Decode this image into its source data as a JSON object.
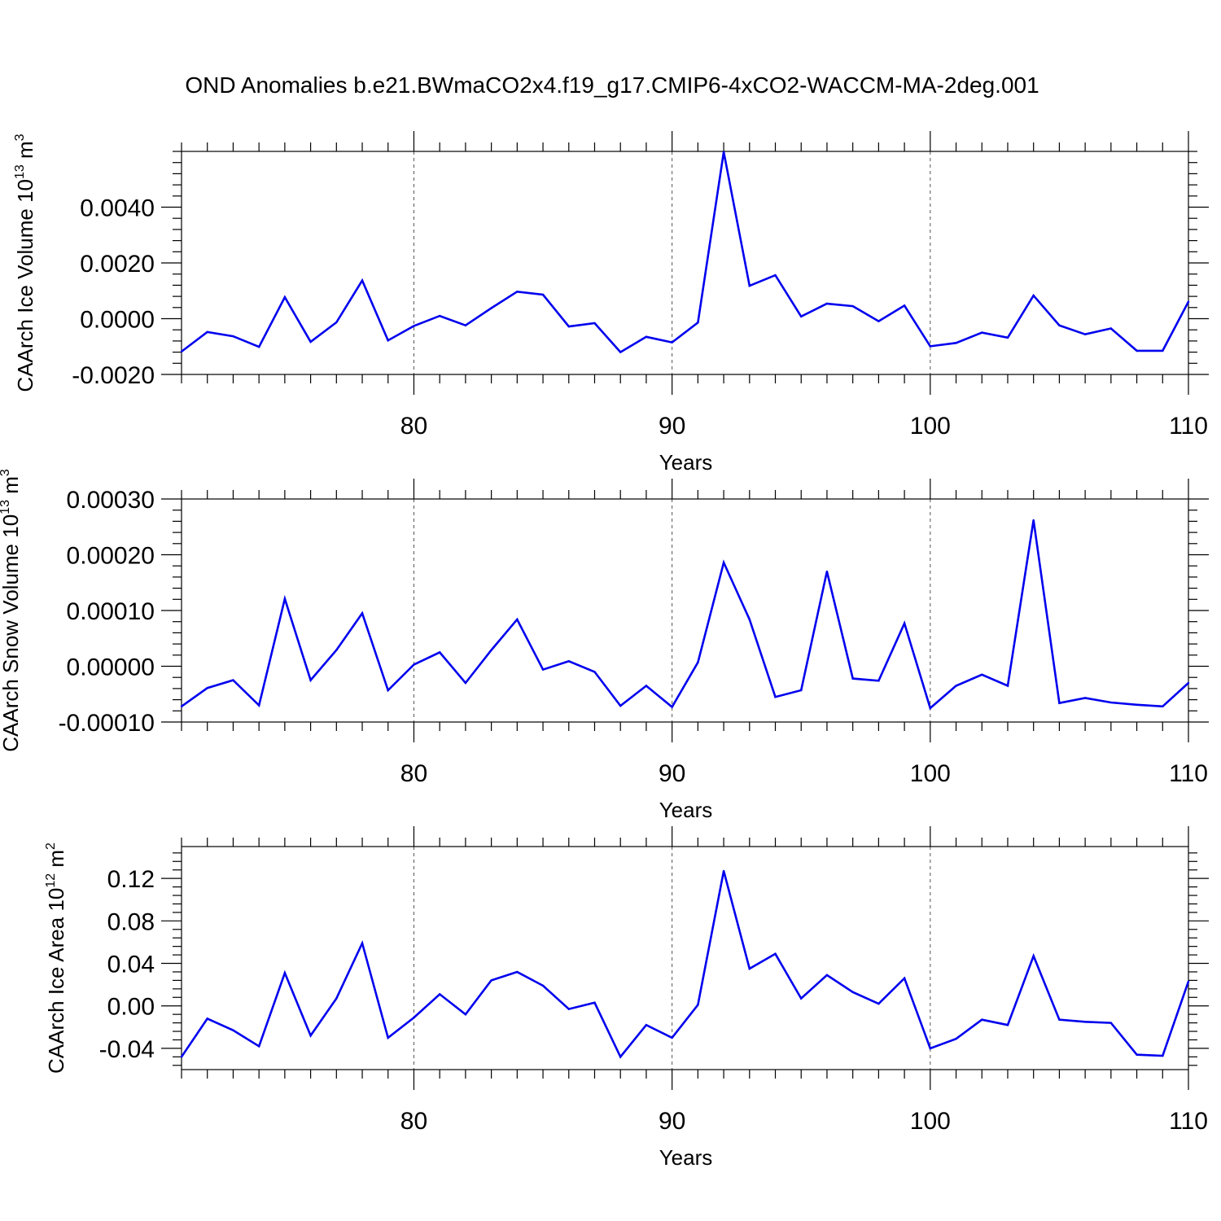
{
  "title": "OND Anomalies b.e21.BWmaCO2x4.f19_g17.CMIP6-4xCO2-WACCM-MA-2deg.001",
  "colors": {
    "line": "#0000ee",
    "axis": "#000000",
    "grid": "#555555"
  },
  "chart_data": [
    {
      "type": "line",
      "xlabel": "Years",
      "ylabel": "CAArch Ice Volume",
      "ylabel_unit_base": "10",
      "ylabel_unit_exp": "13",
      "ylabel_unit_tail": "m",
      "ylabel_unit_tail_exp": "3",
      "xlim": [
        71,
        110
      ],
      "ylim": [
        -0.002,
        0.006
      ],
      "xticks": [
        80,
        90,
        100,
        110
      ],
      "xtick_labels": [
        "80",
        "90",
        "100",
        "110"
      ],
      "yticks": [
        -0.002,
        0.0,
        0.002,
        0.004
      ],
      "ytick_labels": [
        "-0.0020",
        "0.0000",
        "0.0020",
        "0.0040"
      ],
      "grid_x": true,
      "x": [
        71,
        72,
        73,
        74,
        75,
        76,
        77,
        78,
        79,
        80,
        81,
        82,
        83,
        84,
        85,
        86,
        87,
        88,
        89,
        90,
        91,
        92,
        93,
        94,
        95,
        96,
        97,
        98,
        99,
        100,
        101,
        102,
        103,
        104,
        105,
        106,
        107,
        108,
        109,
        110
      ],
      "values": [
        -0.00118,
        -0.00048,
        -0.00063,
        -0.00101,
        0.00077,
        -0.00083,
        -0.00013,
        0.00137,
        -0.00078,
        -0.00026,
        0.0001,
        -0.00024,
        0.00038,
        0.00097,
        0.00086,
        -0.00028,
        -0.00016,
        -0.0012,
        -0.00065,
        -0.00085,
        -0.00014,
        0.00598,
        0.00118,
        0.00156,
        8e-05,
        0.00054,
        0.00045,
        -9e-05,
        0.00047,
        -0.00099,
        -0.00087,
        -0.0005,
        -0.00068,
        0.00083,
        -0.00024,
        -0.00056,
        -0.00035,
        -0.00115,
        -0.00115,
        0.00061
      ]
    },
    {
      "type": "line",
      "xlabel": "Years",
      "ylabel": "CAArch Snow Volume",
      "ylabel_unit_base": "10",
      "ylabel_unit_exp": "13",
      "ylabel_unit_tail": "m",
      "ylabel_unit_tail_exp": "3",
      "xlim": [
        71,
        110
      ],
      "ylim": [
        -0.0001,
        0.0003
      ],
      "xticks": [
        80,
        90,
        100,
        110
      ],
      "xtick_labels": [
        "80",
        "90",
        "100",
        "110"
      ],
      "yticks": [
        -0.0001,
        0.0,
        0.0001,
        0.0002,
        0.0003
      ],
      "ytick_labels": [
        "-0.00010",
        "0.00000",
        "0.00010",
        "0.00020",
        "0.00030"
      ],
      "grid_x": true,
      "x": [
        71,
        72,
        73,
        74,
        75,
        76,
        77,
        78,
        79,
        80,
        81,
        82,
        83,
        84,
        85,
        86,
        87,
        88,
        89,
        90,
        91,
        92,
        93,
        94,
        95,
        96,
        97,
        98,
        99,
        100,
        101,
        102,
        103,
        104,
        105,
        106,
        107,
        108,
        109,
        110
      ],
      "values": [
        -7.2e-05,
        -3.9e-05,
        -2.5e-05,
        -7e-05,
        0.000121,
        -2.5e-05,
        2.9e-05,
        9.5e-05,
        -4.3e-05,
        3e-06,
        2.5e-05,
        -3e-05,
        2.9e-05,
        8.4e-05,
        -6e-06,
        9e-06,
        -1e-05,
        -7.1e-05,
        -3.5e-05,
        -7.3e-05,
        7e-06,
        0.000186,
        8.4e-05,
        -5.5e-05,
        -4.3e-05,
        0.00017,
        -2.2e-05,
        -2.6e-05,
        7.7e-05,
        -7.5e-05,
        -3.5e-05,
        -1.5e-05,
        -3.5e-05,
        0.000262,
        -6.6e-05,
        -5.7e-05,
        -6.5e-05,
        -6.9e-05,
        -7.2e-05,
        -3e-05
      ]
    },
    {
      "type": "line",
      "xlabel": "Years",
      "ylabel": "CAArch Ice Area",
      "ylabel_unit_base": "10",
      "ylabel_unit_exp": "12",
      "ylabel_unit_tail": "m",
      "ylabel_unit_tail_exp": "2",
      "xlim": [
        71,
        110
      ],
      "ylim": [
        -0.06,
        0.15
      ],
      "xticks": [
        80,
        90,
        100,
        110
      ],
      "xtick_labels": [
        "80",
        "90",
        "100",
        "110"
      ],
      "yticks": [
        -0.04,
        0.0,
        0.04,
        0.08,
        0.12
      ],
      "ytick_labels": [
        "-0.04",
        "0.00",
        "0.04",
        "0.08",
        "0.12"
      ],
      "grid_x": true,
      "x": [
        71,
        72,
        73,
        74,
        75,
        76,
        77,
        78,
        79,
        80,
        81,
        82,
        83,
        84,
        85,
        86,
        87,
        88,
        89,
        90,
        91,
        92,
        93,
        94,
        95,
        96,
        97,
        98,
        99,
        100,
        101,
        102,
        103,
        104,
        105,
        106,
        107,
        108,
        109,
        110
      ],
      "values": [
        -0.048,
        -0.012,
        -0.023,
        -0.038,
        0.031,
        -0.028,
        0.007,
        0.059,
        -0.03,
        -0.011,
        0.011,
        -0.008,
        0.024,
        0.032,
        0.019,
        -0.003,
        0.003,
        -0.048,
        -0.018,
        -0.03,
        0.001,
        0.127,
        0.035,
        0.049,
        0.007,
        0.029,
        0.013,
        0.002,
        0.026,
        -0.04,
        -0.031,
        -0.013,
        -0.018,
        0.047,
        -0.013,
        -0.015,
        -0.016,
        -0.046,
        -0.047,
        0.023
      ]
    }
  ]
}
